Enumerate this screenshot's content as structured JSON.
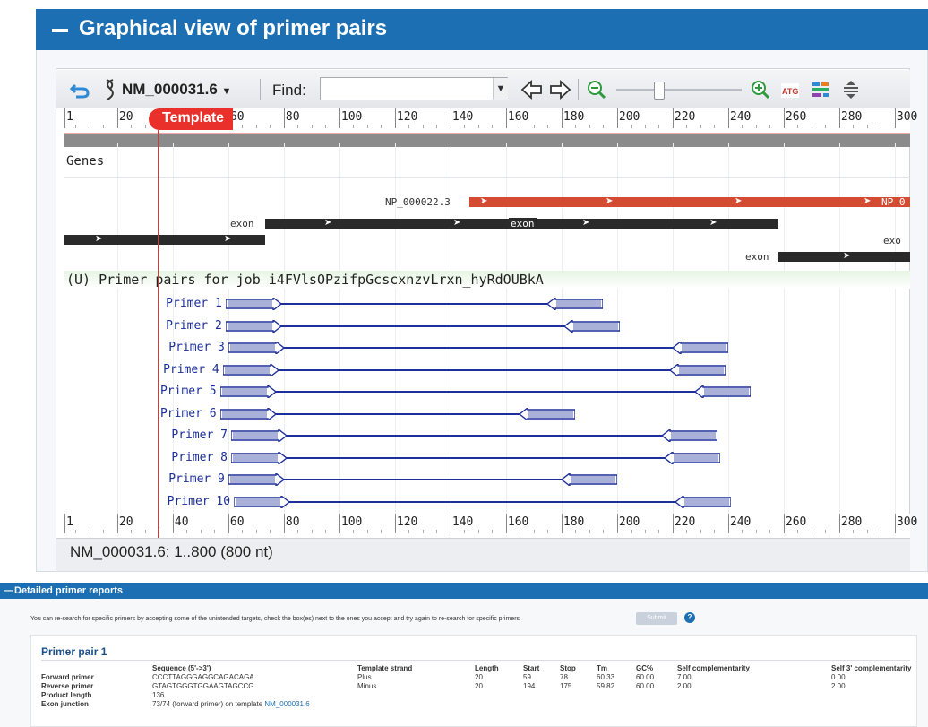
{
  "header": {
    "title": "Graphical view of primer pairs"
  },
  "toolbar": {
    "accession": "NM_000031.6",
    "find_label": "Find:",
    "find_value": ""
  },
  "ruler": {
    "ticks": [
      "1",
      "20",
      "40",
      "60",
      "80",
      "100",
      "120",
      "140",
      "160",
      "180",
      "200",
      "220",
      "240",
      "260",
      "280",
      "300"
    ]
  },
  "template_marker": "Template",
  "tracks": {
    "genes_label": "Genes",
    "protein_label": "NP_000022.3",
    "protein_label_right": "NP_0",
    "exon1_label": "exon",
    "exon2_label": "exon",
    "exon3_label": "exon",
    "exon_right_label": "exo",
    "primers_title": "(U) Primer pairs for job i4FVlsOPzifpGcscxnzvLrxn_hyRdOUBkA"
  },
  "primers": [
    {
      "label": "Primer 1",
      "fwd_start": 59,
      "rev_end": 194
    },
    {
      "label": "Primer 2",
      "fwd_start": 59,
      "rev_end": 200
    },
    {
      "label": "Primer 3",
      "fwd_start": 60,
      "rev_end": 239
    },
    {
      "label": "Primer 4",
      "fwd_start": 58,
      "rev_end": 238
    },
    {
      "label": "Primer 5",
      "fwd_start": 57,
      "rev_end": 247
    },
    {
      "label": "Primer 6",
      "fwd_start": 57,
      "rev_end": 184
    },
    {
      "label": "Primer 7",
      "fwd_start": 61,
      "rev_end": 235
    },
    {
      "label": "Primer 8",
      "fwd_start": 61,
      "rev_end": 236
    },
    {
      "label": "Primer 9",
      "fwd_start": 60,
      "rev_end": 199
    },
    {
      "label": "Primer 10",
      "fwd_start": 62,
      "rev_end": 240
    }
  ],
  "status": "NM_000031.6: 1..800 (800 nt)",
  "report": {
    "header": "Detailed primer reports",
    "instructions": "You can re-search for specific primers by accepting some of the unintended targets, check the box(es) next to the ones you accept and try again to re-search for specific primers",
    "submit_label": "Submit",
    "help": "?",
    "pair_title": "Primer pair 1",
    "columns": [
      "Sequence (5'->3')",
      "Template strand",
      "Length",
      "Start",
      "Stop",
      "Tm",
      "GC%",
      "Self complementarity",
      "Self 3' complementarity"
    ],
    "rows": [
      {
        "name": "Forward primer",
        "seq": "CCCTTAGGGAGGCAGACAGA",
        "strand": "Plus",
        "length": "20",
        "start": "59",
        "stop": "78",
        "tm": "60.33",
        "gc": "60.00",
        "selfc": "7.00",
        "self3": "0.00"
      },
      {
        "name": "Reverse primer",
        "seq": "GTAGTGGGTGGAAGTAGCCG",
        "strand": "Minus",
        "length": "20",
        "start": "194",
        "stop": "175",
        "tm": "59.82",
        "gc": "60.00",
        "selfc": "2.00",
        "self3": "2.00"
      }
    ],
    "product_length_label": "Product length",
    "product_length": "136",
    "exon_junction_label": "Exon junction",
    "exon_junction_text": "73/74 (forward primer) on template",
    "exon_junction_link": "NM_000031.6"
  },
  "colors": {
    "header_bg": "#1b6fb2",
    "primer_blue": "#1d2f9a",
    "protein_red": "#d54a32",
    "template_red": "#e9302a"
  }
}
